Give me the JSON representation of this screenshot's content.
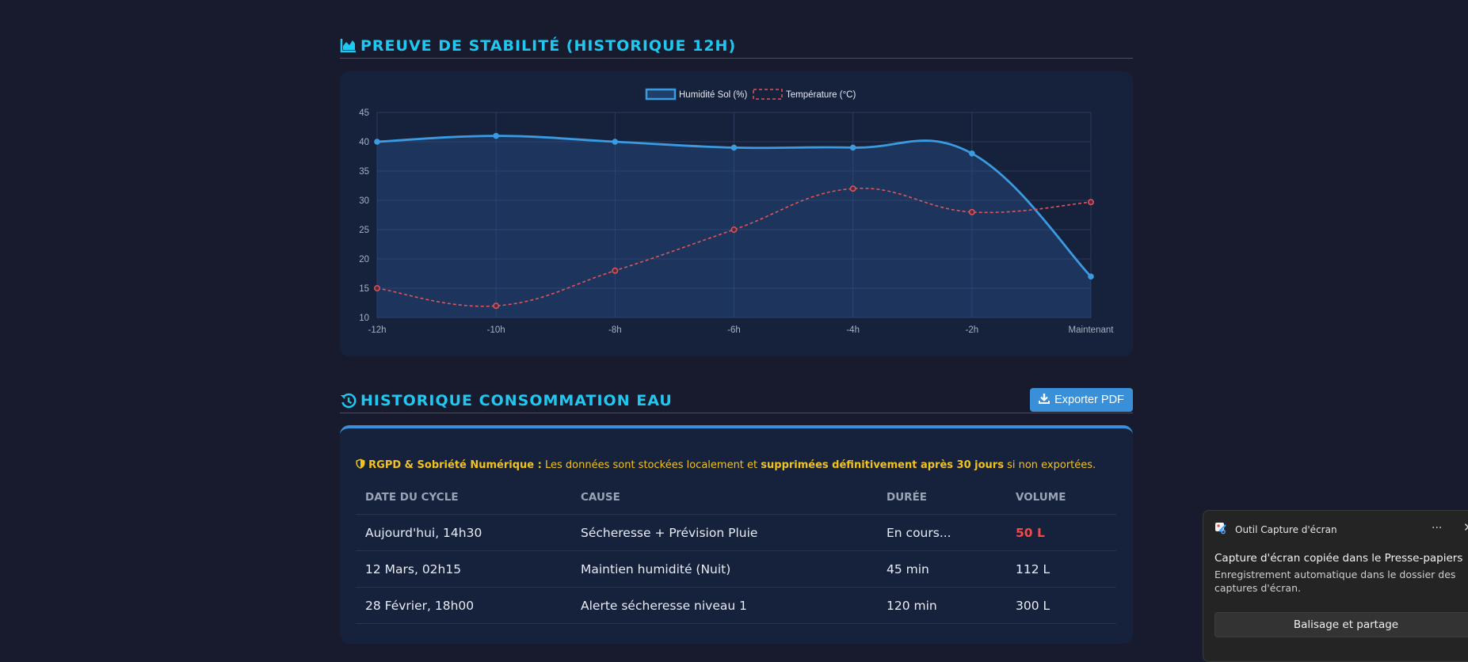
{
  "stability": {
    "title": "PREUVE DE STABILITÉ (HISTORIQUE 12H)"
  },
  "chart_data": {
    "type": "line",
    "categories": [
      "-12h",
      "-10h",
      "-8h",
      "-6h",
      "-4h",
      "-2h",
      "Maintenant"
    ],
    "series": [
      {
        "name": "Humidité Sol (%)",
        "values": [
          40,
          41,
          40,
          39,
          39,
          38,
          17
        ],
        "color": "#3a9be0",
        "style": "solid",
        "fill": true
      },
      {
        "name": "Température (°C)",
        "values": [
          15,
          12,
          18,
          25,
          32,
          28,
          29.7
        ],
        "color": "#e0545a",
        "style": "dashed",
        "fill": false
      }
    ],
    "yticks": [
      "10",
      "15",
      "20",
      "25",
      "30",
      "35",
      "40",
      "45"
    ],
    "ylim": [
      10,
      45
    ],
    "grid": true,
    "legend": "top-center"
  },
  "history": {
    "title": "HISTORIQUE CONSOMMATION EAU",
    "export_label": "Exporter PDF",
    "gdpr": {
      "label": "RGPD & Sobriété Numérique :",
      "text1": " Les données sont stockées localement et ",
      "strong": "supprimées définitivement après 30 jours",
      "text2": " si non exportées."
    },
    "columns": [
      "DATE DU CYCLE",
      "CAUSE",
      "DURÉE",
      "VOLUME"
    ],
    "rows": [
      {
        "date": "Aujourd'hui, 14h30",
        "cause": "Sécheresse + Prévision Pluie",
        "duration": "En cours...",
        "volume": "50 L"
      },
      {
        "date": "12 Mars, 02h15",
        "cause": "Maintien humidité (Nuit)",
        "duration": "45 min",
        "volume": "112 L"
      },
      {
        "date": "28 Février, 18h00",
        "cause": "Alerte sécheresse niveau 1",
        "duration": "120 min",
        "volume": "300 L"
      }
    ]
  },
  "toast": {
    "app": "Outil Capture d'écran",
    "more": "···",
    "close": "✕",
    "title": "Capture d'écran copiée dans le Presse-papiers",
    "body": "Enregistrement automatique dans le dossier des captures d'écran.",
    "button": "Balisage et partage"
  },
  "colors": {
    "accent": "#1ec8f0",
    "background": "#181b2e",
    "card": "#16213c",
    "alert": "#f24a4a",
    "warning": "#f2c31b"
  }
}
